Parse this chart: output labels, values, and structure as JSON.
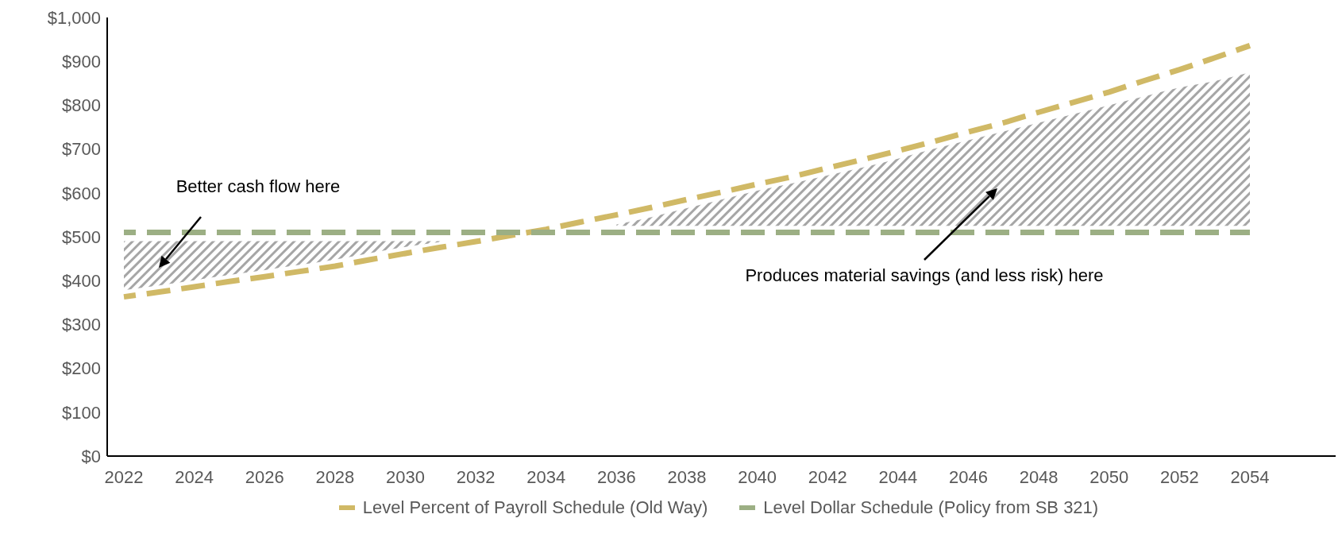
{
  "chart_data": {
    "type": "line",
    "categories": [
      "2022",
      null,
      "2024",
      null,
      "2026",
      null,
      "2028",
      null,
      "2030",
      null,
      "2032",
      null,
      "2034",
      null,
      "2036",
      null,
      "2038",
      null,
      "2040",
      null,
      "2042",
      null,
      "2044",
      null,
      "2046",
      null,
      "2048",
      null,
      "2050",
      null,
      "2052",
      null,
      "2054"
    ],
    "series": [
      {
        "name": "Level Percent of Payroll Schedule (Old Way)",
        "color": "#d0b966",
        "values": [
          363,
          374,
          386,
          398,
          409,
          421,
          433,
          448,
          462,
          476,
          489,
          503,
          517,
          534,
          550,
          567,
          585,
          602,
          620,
          637,
          657,
          676,
          696,
          717,
          739,
          760,
          784,
          807,
          830,
          856,
          881,
          908,
          936
        ],
        "lower": [
          378,
          389,
          401,
          413,
          424,
          436,
          448,
          463,
          477,
          488,
          null,
          null,
          null,
          null,
          525,
          525,
          525,
          525,
          525,
          525,
          525,
          525,
          525,
          525,
          525,
          525,
          525,
          525,
          525,
          525,
          525,
          525,
          525
        ],
        "upper": [
          490,
          490,
          490,
          490,
          490,
          490,
          490,
          490,
          490,
          490,
          null,
          null,
          null,
          null,
          528,
          545,
          565,
          585,
          605,
          622,
          640,
          658,
          678,
          700,
          720,
          740,
          760,
          780,
          800,
          820,
          840,
          855,
          875
        ]
      },
      {
        "name": "Level Dollar Schedule (Policy from SB 321)",
        "color": "#9caf84",
        "values": [
          510,
          510,
          510,
          510,
          510,
          510,
          510,
          510,
          510,
          510,
          510,
          510,
          510,
          510,
          510,
          510,
          510,
          510,
          510,
          510,
          510,
          510,
          510,
          510,
          510,
          510,
          510,
          510,
          510,
          510,
          510,
          510,
          510
        ]
      }
    ],
    "ylim": [
      0,
      1000
    ],
    "yticks": [
      {
        "value": 0,
        "label": "$0"
      },
      {
        "value": 100,
        "label": "$100"
      },
      {
        "value": 200,
        "label": "$200"
      },
      {
        "value": 300,
        "label": "$300"
      },
      {
        "value": 400,
        "label": "$400"
      },
      {
        "value": 500,
        "label": "$500"
      },
      {
        "value": 600,
        "label": "$600"
      },
      {
        "value": 700,
        "label": "$700"
      },
      {
        "value": 800,
        "label": "$800"
      },
      {
        "value": 900,
        "label": "$900"
      },
      {
        "value": 1000,
        "label": "$1,000"
      }
    ],
    "annotations": [
      "Better cash flow here",
      "Produces material savings (and less risk) here"
    ],
    "legend": "bottom",
    "marker": "none",
    "line_style": "dashed"
  }
}
